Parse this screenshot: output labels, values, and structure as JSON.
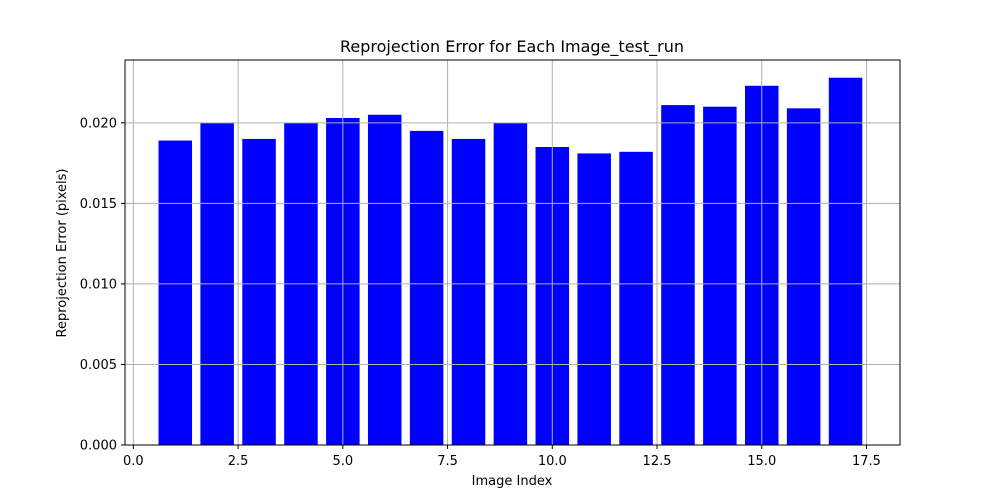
{
  "chart_data": {
    "type": "bar",
    "title": "Reprojection Error for Each Image_test_run",
    "xlabel": "Image Index",
    "ylabel": "Reprojection Error (pixels)",
    "x": [
      1,
      2,
      3,
      4,
      5,
      6,
      7,
      8,
      9,
      10,
      11,
      12,
      13,
      14,
      15,
      16,
      17
    ],
    "values": [
      0.0189,
      0.02,
      0.019,
      0.02,
      0.0203,
      0.0205,
      0.0195,
      0.019,
      0.02,
      0.0185,
      0.0181,
      0.0182,
      0.0211,
      0.021,
      0.0223,
      0.0209,
      0.0228
    ],
    "bar_width": 0.8,
    "bar_color": "#0000ff",
    "xlim": [
      -0.2,
      18.3
    ],
    "ylim": [
      0,
      0.0239
    ],
    "xticks": [
      0.0,
      2.5,
      5.0,
      7.5,
      10.0,
      12.5,
      15.0,
      17.5
    ],
    "xtick_labels": [
      "0.0",
      "2.5",
      "5.0",
      "7.5",
      "10.0",
      "12.5",
      "15.0",
      "17.5"
    ],
    "yticks": [
      0.0,
      0.005,
      0.01,
      0.015,
      0.02
    ],
    "ytick_labels": [
      "0.000",
      "0.005",
      "0.010",
      "0.015",
      "0.020"
    ],
    "grid": true,
    "legend": false
  }
}
